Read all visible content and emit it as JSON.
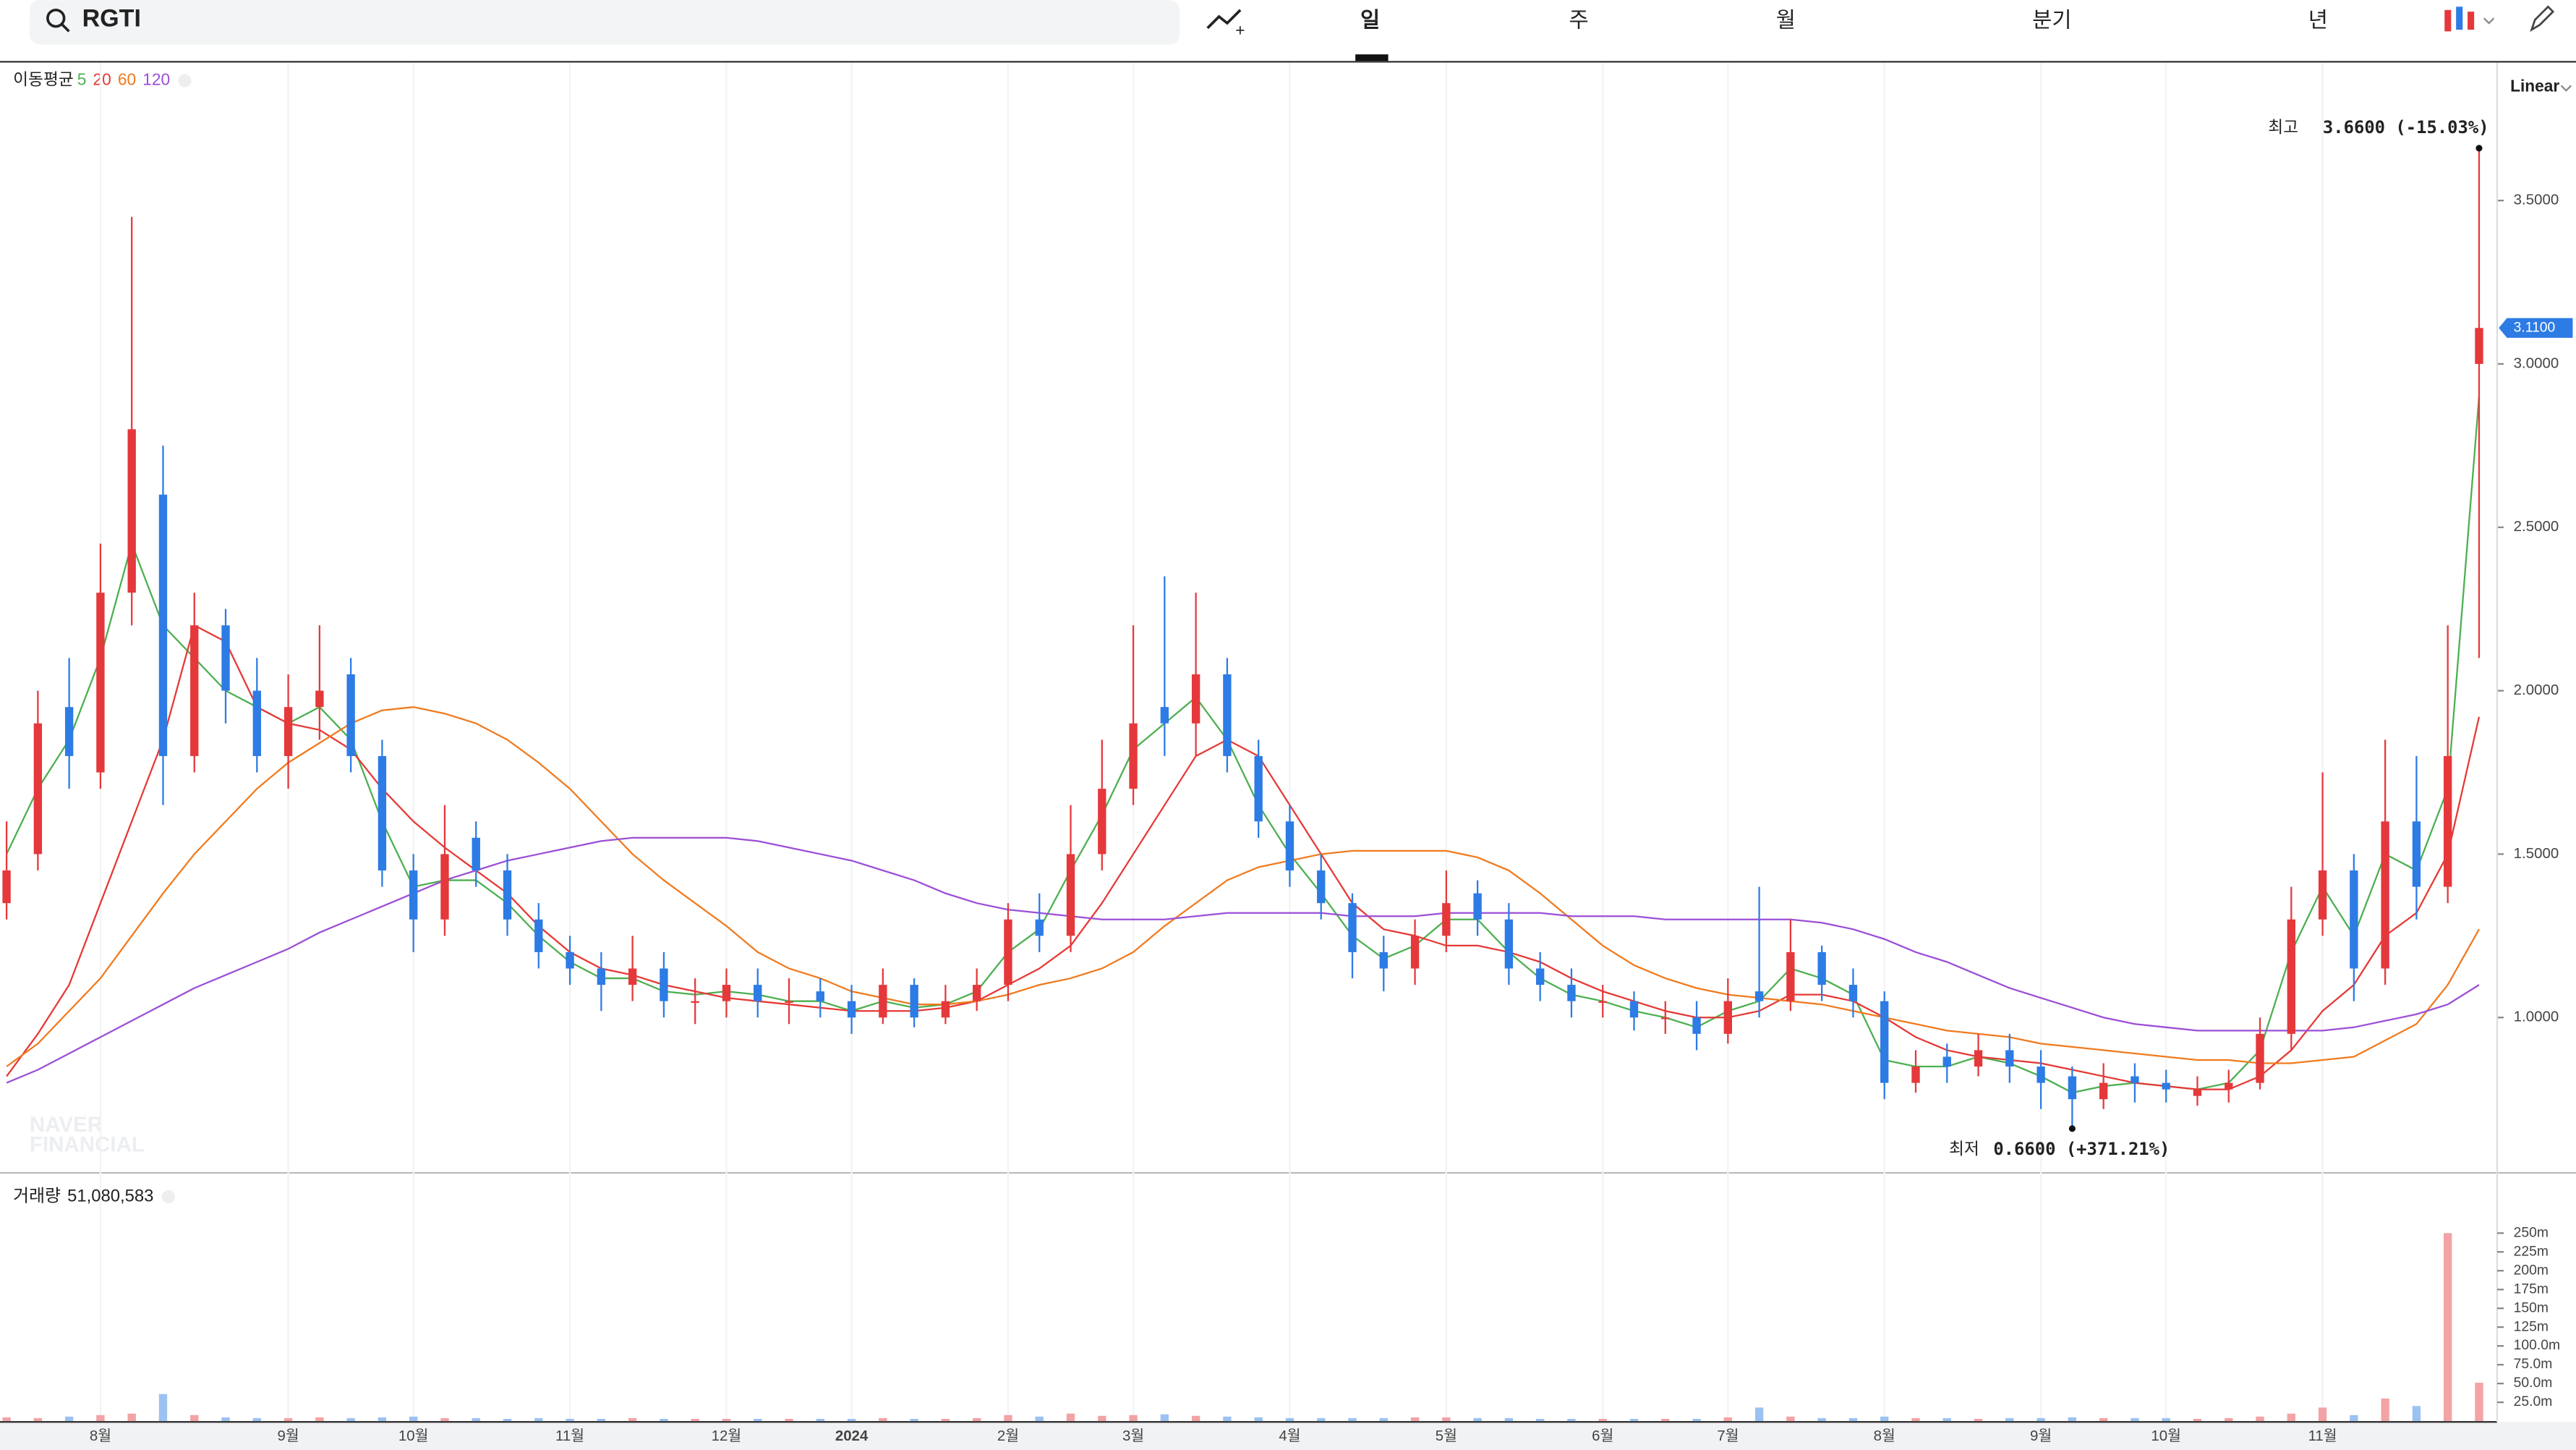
{
  "header": {
    "symbol": "RGTI",
    "tabs": [
      "일",
      "주",
      "월",
      "분기",
      "년"
    ],
    "scale": "Linear",
    "watermark": [
      "NAVER",
      "FINANCIAL"
    ]
  },
  "chart_data": [
    {
      "type": "candlestick",
      "legend_title": "이동평균",
      "categories": [
        null,
        null,
        null,
        "8월",
        null,
        null,
        null,
        null,
        null,
        "9월",
        null,
        null,
        null,
        "10월",
        null,
        null,
        null,
        null,
        "11월",
        null,
        null,
        null,
        null,
        "12월",
        null,
        null,
        null,
        "2024",
        null,
        null,
        null,
        null,
        "2월",
        null,
        null,
        null,
        "3월",
        null,
        null,
        null,
        null,
        "4월",
        null,
        null,
        null,
        null,
        "5월",
        null,
        null,
        null,
        null,
        "6월",
        null,
        null,
        null,
        "7월",
        null,
        null,
        null,
        null,
        "8월",
        null,
        null,
        null,
        null,
        "9월",
        null,
        null,
        null,
        "10월",
        null,
        null,
        null,
        null,
        "11월",
        null,
        null,
        null,
        null,
        null
      ],
      "open": [
        1.35,
        1.5,
        1.95,
        1.75,
        2.3,
        2.6,
        1.8,
        2.2,
        2.0,
        1.8,
        1.95,
        2.05,
        1.8,
        1.45,
        1.3,
        1.55,
        1.45,
        1.3,
        1.2,
        1.15,
        1.1,
        1.15,
        1.05,
        1.05,
        1.1,
        1.05,
        1.08,
        1.05,
        1.0,
        1.1,
        1.0,
        1.05,
        1.1,
        1.3,
        1.25,
        1.5,
        1.7,
        1.95,
        1.9,
        2.05,
        1.8,
        1.6,
        1.45,
        1.35,
        1.2,
        1.15,
        1.25,
        1.38,
        1.3,
        1.15,
        1.1,
        1.05,
        1.05,
        1.0,
        1.0,
        0.95,
        1.08,
        1.05,
        1.2,
        1.1,
        1.05,
        0.8,
        0.88,
        0.85,
        0.9,
        0.85,
        0.82,
        0.75,
        0.82,
        0.8,
        0.76,
        0.78,
        0.8,
        0.95,
        1.3,
        1.45,
        1.15,
        1.6,
        1.4,
        3.0
      ],
      "high": [
        1.6,
        2.0,
        2.1,
        2.45,
        3.45,
        2.75,
        2.3,
        2.25,
        2.1,
        2.05,
        2.2,
        2.1,
        1.85,
        1.5,
        1.65,
        1.6,
        1.5,
        1.35,
        1.25,
        1.2,
        1.25,
        1.2,
        1.12,
        1.15,
        1.15,
        1.12,
        1.12,
        1.1,
        1.15,
        1.12,
        1.1,
        1.15,
        1.35,
        1.38,
        1.65,
        1.85,
        2.2,
        2.35,
        2.3,
        2.1,
        1.85,
        1.65,
        1.5,
        1.38,
        1.25,
        1.3,
        1.45,
        1.42,
        1.35,
        1.2,
        1.15,
        1.1,
        1.08,
        1.05,
        1.05,
        1.12,
        1.4,
        1.3,
        1.22,
        1.15,
        1.08,
        0.9,
        0.92,
        0.95,
        0.95,
        0.9,
        0.85,
        0.86,
        0.86,
        0.84,
        0.82,
        0.84,
        1.0,
        1.4,
        1.75,
        1.5,
        1.85,
        1.8,
        2.2,
        3.66
      ],
      "low": [
        1.3,
        1.45,
        1.7,
        1.7,
        2.2,
        1.65,
        1.75,
        1.9,
        1.75,
        1.7,
        1.85,
        1.75,
        1.4,
        1.2,
        1.25,
        1.4,
        1.25,
        1.15,
        1.1,
        1.02,
        1.05,
        1.0,
        0.98,
        1.0,
        1.0,
        0.98,
        1.0,
        0.95,
        0.98,
        0.97,
        0.98,
        1.02,
        1.05,
        1.2,
        1.2,
        1.45,
        1.65,
        1.8,
        1.8,
        1.75,
        1.55,
        1.4,
        1.3,
        1.12,
        1.08,
        1.1,
        1.2,
        1.25,
        1.1,
        1.05,
        1.0,
        1.0,
        0.96,
        0.95,
        0.9,
        0.92,
        1.0,
        1.02,
        1.05,
        1.0,
        0.75,
        0.77,
        0.8,
        0.82,
        0.8,
        0.72,
        0.66,
        0.72,
        0.74,
        0.74,
        0.73,
        0.74,
        0.78,
        0.9,
        1.25,
        1.05,
        1.1,
        1.3,
        1.35,
        2.1
      ],
      "close": [
        1.45,
        1.9,
        1.8,
        2.3,
        2.8,
        1.8,
        2.2,
        2.0,
        1.8,
        1.95,
        2.0,
        1.8,
        1.45,
        1.3,
        1.5,
        1.45,
        1.3,
        1.2,
        1.15,
        1.1,
        1.15,
        1.05,
        1.05,
        1.1,
        1.05,
        1.05,
        1.05,
        1.0,
        1.1,
        1.0,
        1.05,
        1.1,
        1.3,
        1.25,
        1.5,
        1.7,
        1.9,
        1.9,
        2.05,
        1.8,
        1.6,
        1.45,
        1.35,
        1.2,
        1.15,
        1.25,
        1.35,
        1.3,
        1.15,
        1.1,
        1.05,
        1.05,
        1.0,
        1.0,
        0.95,
        1.05,
        1.05,
        1.2,
        1.1,
        1.05,
        0.8,
        0.85,
        0.85,
        0.9,
        0.85,
        0.8,
        0.75,
        0.8,
        0.8,
        0.78,
        0.78,
        0.8,
        0.95,
        1.3,
        1.45,
        1.15,
        1.6,
        1.4,
        1.8,
        3.11
      ],
      "up_color": "#e5383b",
      "down_color": "#2d7be5",
      "series": [
        {
          "name": "5",
          "color": "#4caf50",
          "values": [
            1.5,
            1.7,
            1.85,
            2.1,
            2.45,
            2.2,
            2.1,
            2.0,
            1.95,
            1.9,
            1.95,
            1.85,
            1.6,
            1.4,
            1.42,
            1.42,
            1.35,
            1.25,
            1.17,
            1.12,
            1.12,
            1.08,
            1.07,
            1.08,
            1.07,
            1.05,
            1.05,
            1.02,
            1.05,
            1.03,
            1.04,
            1.08,
            1.2,
            1.27,
            1.45,
            1.62,
            1.82,
            1.9,
            1.98,
            1.85,
            1.65,
            1.5,
            1.38,
            1.25,
            1.18,
            1.22,
            1.3,
            1.3,
            1.2,
            1.12,
            1.07,
            1.05,
            1.02,
            1.0,
            0.97,
            1.02,
            1.05,
            1.15,
            1.12,
            1.07,
            0.87,
            0.85,
            0.85,
            0.88,
            0.86,
            0.82,
            0.77,
            0.79,
            0.8,
            0.79,
            0.78,
            0.8,
            0.9,
            1.2,
            1.4,
            1.25,
            1.5,
            1.45,
            1.7,
            2.9
          ]
        },
        {
          "name": "20",
          "color": "#e53935",
          "values": [
            0.82,
            0.95,
            1.1,
            1.35,
            1.6,
            1.85,
            2.2,
            2.15,
            1.95,
            1.9,
            1.88,
            1.82,
            1.7,
            1.6,
            1.52,
            1.45,
            1.38,
            1.28,
            1.2,
            1.15,
            1.13,
            1.1,
            1.08,
            1.06,
            1.05,
            1.04,
            1.03,
            1.02,
            1.02,
            1.02,
            1.03,
            1.05,
            1.1,
            1.15,
            1.22,
            1.35,
            1.5,
            1.65,
            1.8,
            1.85,
            1.8,
            1.65,
            1.5,
            1.35,
            1.27,
            1.25,
            1.22,
            1.22,
            1.2,
            1.17,
            1.12,
            1.08,
            1.05,
            1.02,
            1.0,
            1.0,
            1.02,
            1.07,
            1.07,
            1.05,
            1.0,
            0.94,
            0.9,
            0.88,
            0.87,
            0.86,
            0.84,
            0.82,
            0.8,
            0.79,
            0.78,
            0.78,
            0.82,
            0.9,
            1.02,
            1.1,
            1.25,
            1.32,
            1.5,
            1.92
          ]
        },
        {
          "name": "60",
          "color": "#f07a1e",
          "values": [
            0.85,
            0.92,
            1.02,
            1.12,
            1.25,
            1.38,
            1.5,
            1.6,
            1.7,
            1.78,
            1.84,
            1.9,
            1.94,
            1.95,
            1.93,
            1.9,
            1.85,
            1.78,
            1.7,
            1.6,
            1.5,
            1.42,
            1.35,
            1.28,
            1.2,
            1.15,
            1.12,
            1.08,
            1.06,
            1.04,
            1.04,
            1.05,
            1.07,
            1.1,
            1.12,
            1.15,
            1.2,
            1.28,
            1.35,
            1.42,
            1.46,
            1.48,
            1.5,
            1.51,
            1.51,
            1.51,
            1.51,
            1.49,
            1.45,
            1.38,
            1.3,
            1.22,
            1.16,
            1.12,
            1.09,
            1.07,
            1.06,
            1.05,
            1.04,
            1.02,
            1.0,
            0.98,
            0.96,
            0.95,
            0.94,
            0.92,
            0.91,
            0.9,
            0.89,
            0.88,
            0.87,
            0.87,
            0.86,
            0.86,
            0.87,
            0.88,
            0.93,
            0.98,
            1.1,
            1.27
          ]
        },
        {
          "name": "120",
          "color": "#9b4fd6",
          "values": [
            0.8,
            0.84,
            0.89,
            0.94,
            0.99,
            1.04,
            1.09,
            1.13,
            1.17,
            1.21,
            1.26,
            1.3,
            1.34,
            1.38,
            1.42,
            1.45,
            1.48,
            1.5,
            1.52,
            1.54,
            1.55,
            1.55,
            1.55,
            1.55,
            1.54,
            1.52,
            1.5,
            1.48,
            1.45,
            1.42,
            1.38,
            1.35,
            1.33,
            1.32,
            1.31,
            1.3,
            1.3,
            1.3,
            1.31,
            1.32,
            1.32,
            1.32,
            1.32,
            1.31,
            1.31,
            1.31,
            1.32,
            1.32,
            1.32,
            1.32,
            1.31,
            1.31,
            1.31,
            1.3,
            1.3,
            1.3,
            1.3,
            1.3,
            1.29,
            1.27,
            1.24,
            1.2,
            1.17,
            1.13,
            1.09,
            1.06,
            1.03,
            1.0,
            0.98,
            0.97,
            0.96,
            0.96,
            0.96,
            0.96,
            0.96,
            0.97,
            0.99,
            1.01,
            1.04,
            1.1
          ]
        }
      ],
      "ylim": [
        0.527,
        3.922
      ],
      "yticks": [
        {
          "value": 1.0,
          "label": "1.0000"
        },
        {
          "value": 1.5,
          "label": "1.5000"
        },
        {
          "value": 2.0,
          "label": "2.0000"
        },
        {
          "value": 2.5,
          "label": "2.5000"
        },
        {
          "value": 3.0,
          "label": "3.0000"
        },
        {
          "value": 3.5,
          "label": "3.5000"
        }
      ],
      "last_price": {
        "value": 3.11,
        "label": "3.1100"
      },
      "high_marker": {
        "label": "최고",
        "value": 3.66,
        "value_label": "3.6600 (-15.03%)"
      },
      "low_marker": {
        "label": "최저",
        "value": 0.66,
        "value_label": "0.6600 (+371.21%)"
      }
    },
    {
      "type": "bar",
      "title": "거래량",
      "last_volume": {
        "value": 51.080583,
        "label": "51,080,583"
      },
      "values": [
        5,
        4,
        6,
        8,
        10,
        36,
        8,
        5,
        4,
        4,
        5,
        4,
        5,
        6,
        4,
        4,
        3,
        4,
        3,
        3,
        4,
        3,
        3,
        3,
        3,
        3,
        3,
        3,
        4,
        3,
        3,
        4,
        8,
        6,
        10,
        7,
        8,
        9,
        7,
        6,
        5,
        4,
        4,
        4,
        4,
        5,
        5,
        4,
        4,
        3,
        3,
        3,
        3,
        3,
        3,
        5,
        18,
        6,
        4,
        4,
        6,
        4,
        4,
        3,
        4,
        4,
        5,
        4,
        4,
        4,
        3,
        4,
        6,
        10,
        18,
        8,
        30,
        20,
        250,
        51.080583
      ],
      "ylim": [
        0,
        329
      ],
      "yticks": [
        {
          "value": 25,
          "label": "25.0m"
        },
        {
          "value": 50,
          "label": "50.0m"
        },
        {
          "value": 75,
          "label": "75.0m"
        },
        {
          "value": 100,
          "label": "100.0m"
        },
        {
          "value": 125,
          "label": "125m"
        },
        {
          "value": 150,
          "label": "150m"
        },
        {
          "value": 175,
          "label": "175m"
        },
        {
          "value": 200,
          "label": "200m"
        },
        {
          "value": 225,
          "label": "225m"
        },
        {
          "value": 250,
          "label": "250m"
        }
      ]
    }
  ]
}
